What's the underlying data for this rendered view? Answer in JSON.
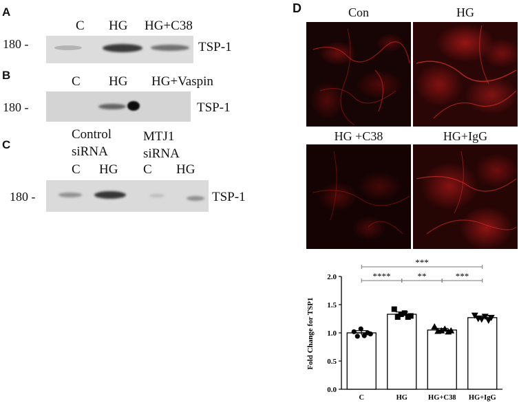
{
  "panels": {
    "A": {
      "letter": "A",
      "lanes": [
        "C",
        "HG",
        "HG+C38"
      ],
      "marker": "180 -",
      "protein": "TSP-1"
    },
    "B": {
      "letter": "B",
      "lanes": [
        "C",
        "HG",
        "HG+Vaspin"
      ],
      "marker": "180 -",
      "protein": "TSP-1"
    },
    "C": {
      "letter": "C",
      "groups": [
        {
          "line1": "Control",
          "line2": "siRNA"
        },
        {
          "line1": "MTJ1",
          "line2": "siRNA"
        }
      ],
      "lanes": [
        "C",
        "HG",
        "C",
        "HG"
      ],
      "marker": "180 -",
      "protein": "TSP-1"
    },
    "D": {
      "letter": "D",
      "images": [
        "Con",
        "HG",
        "HG +C38",
        "HG+IgG"
      ]
    }
  },
  "colors": {
    "fluorescence": "#c41010",
    "blot_bg": "#d9d9d9",
    "band": "#1a1a1a"
  },
  "chart_data": {
    "type": "bar",
    "categories": [
      "C",
      "HG",
      "HG+C38",
      "HG+IgG"
    ],
    "values": [
      1.0,
      1.33,
      1.05,
      1.27
    ],
    "errors": [
      0.04,
      0.04,
      0.03,
      0.03
    ],
    "markers": [
      "circle",
      "square",
      "triangle-up",
      "triangle-down"
    ],
    "points": [
      [
        1.02,
        0.94,
        1.07,
        0.95,
        1.0,
        0.98
      ],
      [
        1.42,
        1.28,
        1.33,
        1.35,
        1.28,
        1.3
      ],
      [
        1.11,
        1.03,
        1.04,
        1.07,
        1.02,
        1.04
      ],
      [
        1.31,
        1.25,
        1.24,
        1.29,
        1.22,
        1.27
      ]
    ],
    "ylabel": "Fold  Change for TSP1",
    "xlabel": "",
    "title": "",
    "ylim": [
      0.0,
      2.0
    ],
    "yticks": [
      "0.0",
      "0.5",
      "1.0",
      "1.5",
      "2.0"
    ],
    "significance": [
      {
        "from": 0,
        "to": 3,
        "label": "***"
      },
      {
        "from": 0,
        "to": 1,
        "label": "****"
      },
      {
        "from": 1,
        "to": 2,
        "label": "**"
      },
      {
        "from": 2,
        "to": 3,
        "label": "***"
      }
    ],
    "grid": false,
    "legend": "none"
  }
}
